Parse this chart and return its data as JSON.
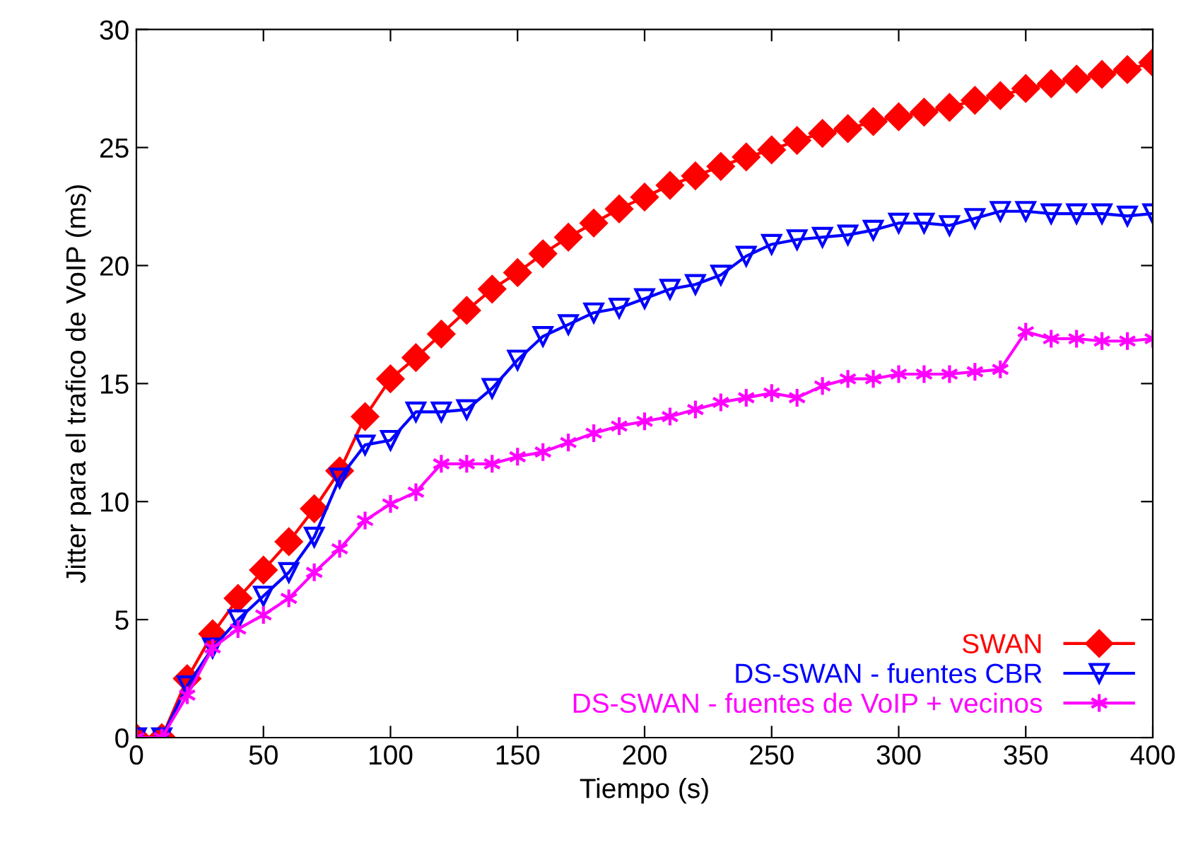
{
  "chart_data": {
    "type": "line",
    "xlabel": "Tiempo (s)",
    "ylabel": "Jitter para el trafico de VoIP (ms)",
    "x": [
      0,
      10,
      20,
      30,
      40,
      50,
      60,
      70,
      80,
      90,
      100,
      110,
      120,
      130,
      140,
      150,
      160,
      170,
      180,
      190,
      200,
      210,
      220,
      230,
      240,
      250,
      260,
      270,
      280,
      290,
      300,
      310,
      320,
      330,
      340,
      350,
      360,
      370,
      380,
      390,
      400
    ],
    "series": [
      {
        "name": "SWAN",
        "color": "#ff0000",
        "marker": "diamond",
        "values": [
          0,
          0,
          2.5,
          4.4,
          5.9,
          7.1,
          8.3,
          9.7,
          11.3,
          13.6,
          15.2,
          16.1,
          17.1,
          18.1,
          19.0,
          19.7,
          20.5,
          21.2,
          21.8,
          22.4,
          22.9,
          23.4,
          23.8,
          24.2,
          24.6,
          24.9,
          25.3,
          25.6,
          25.8,
          26.1,
          26.3,
          26.5,
          26.7,
          27.0,
          27.2,
          27.5,
          27.7,
          27.9,
          28.1,
          28.3,
          28.6
        ]
      },
      {
        "name": "DS-SWAN - fuentes CBR",
        "color": "#0000ff",
        "marker": "triangle",
        "values": [
          0,
          0,
          2.2,
          3.8,
          5.0,
          6.0,
          7.0,
          8.5,
          11.0,
          12.4,
          12.6,
          13.8,
          13.8,
          13.9,
          14.8,
          16.0,
          17.0,
          17.5,
          18.0,
          18.2,
          18.6,
          19.0,
          19.2,
          19.6,
          20.4,
          20.9,
          21.1,
          21.2,
          21.3,
          21.5,
          21.8,
          21.8,
          21.7,
          22.0,
          22.3,
          22.3,
          22.2,
          22.2,
          22.2,
          22.1,
          22.2
        ]
      },
      {
        "name": "DS-SWAN - fuentes de VoIP + vecinos",
        "color": "#ff00ff",
        "marker": "cross",
        "values": [
          0,
          0,
          1.8,
          3.8,
          4.6,
          5.2,
          5.9,
          7.0,
          8.0,
          9.2,
          9.9,
          10.4,
          11.6,
          11.6,
          11.6,
          11.9,
          12.1,
          12.5,
          12.9,
          13.2,
          13.4,
          13.6,
          13.9,
          14.2,
          14.4,
          14.6,
          14.4,
          14.9,
          15.2,
          15.2,
          15.4,
          15.4,
          15.4,
          15.5,
          15.6,
          17.2,
          16.9,
          16.9,
          16.8,
          16.8,
          16.9
        ]
      }
    ],
    "xlim": [
      0,
      400
    ],
    "xticks": [
      0,
      50,
      100,
      150,
      200,
      250,
      300,
      350,
      400
    ],
    "ylim": [
      0,
      30
    ],
    "yticks": [
      0,
      5,
      10,
      15,
      20,
      25,
      30
    ],
    "grid": false,
    "legend": "bottom right",
    "line_style": "solid"
  }
}
